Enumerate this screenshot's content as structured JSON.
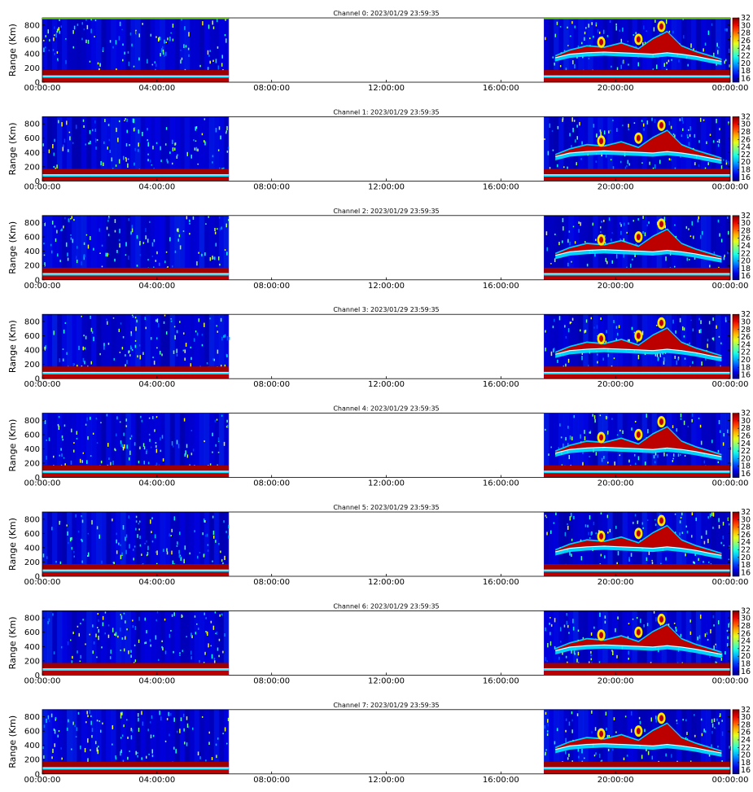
{
  "figure": {
    "background": "#ffffff"
  },
  "chart_data": [
    {
      "type": "heatmap",
      "title": "Channel 0: 2023/01/29 23:59:35",
      "ylabel": "Range (Km)",
      "x_ticks": [
        "00:00:00",
        "04:00:00",
        "08:00:00",
        "12:00:00",
        "16:00:00",
        "20:00:00",
        "00:00:00"
      ],
      "y_ticks": [
        0,
        200,
        400,
        600,
        800
      ],
      "ylim": [
        0,
        900
      ],
      "colorbar": {
        "ticks": [
          16,
          18,
          20,
          22,
          24,
          26,
          28,
          30,
          32
        ],
        "range": [
          15,
          32
        ],
        "colormap": "jet"
      },
      "data_segments": [
        {
          "start": "00:00:00",
          "end": "06:30:00"
        },
        {
          "start": "17:30:00",
          "end": "24:00:00"
        }
      ],
      "grid": false
    },
    {
      "type": "heatmap",
      "title": "Channel 1: 2023/01/29 23:59:35",
      "ylabel": "Range (Km)",
      "x_ticks": [
        "00:00:00",
        "04:00:00",
        "08:00:00",
        "12:00:00",
        "16:00:00",
        "20:00:00",
        "00:00:00"
      ],
      "y_ticks": [
        0,
        200,
        400,
        600,
        800
      ],
      "ylim": [
        0,
        900
      ],
      "colorbar": {
        "ticks": [
          16,
          18,
          20,
          22,
          24,
          26,
          28,
          30,
          32
        ],
        "range": [
          15,
          32
        ],
        "colormap": "jet"
      },
      "data_segments": [
        {
          "start": "00:00:00",
          "end": "06:30:00"
        },
        {
          "start": "17:30:00",
          "end": "24:00:00"
        }
      ],
      "grid": false
    },
    {
      "type": "heatmap",
      "title": "Channel 2: 2023/01/29 23:59:35",
      "ylabel": "Range (Km)",
      "x_ticks": [
        "00:00:00",
        "04:00:00",
        "08:00:00",
        "12:00:00",
        "16:00:00",
        "20:00:00",
        "00:00:00"
      ],
      "y_ticks": [
        0,
        200,
        400,
        600,
        800
      ],
      "ylim": [
        0,
        900
      ],
      "colorbar": {
        "ticks": [
          16,
          18,
          20,
          22,
          24,
          26,
          28,
          30,
          32
        ],
        "range": [
          15,
          32
        ],
        "colormap": "jet"
      },
      "data_segments": [
        {
          "start": "00:00:00",
          "end": "06:30:00"
        },
        {
          "start": "17:30:00",
          "end": "24:00:00"
        }
      ],
      "grid": false
    },
    {
      "type": "heatmap",
      "title": "Channel 3: 2023/01/29 23:59:35",
      "ylabel": "Range (Km)",
      "x_ticks": [
        "00:00:00",
        "04:00:00",
        "08:00:00",
        "12:00:00",
        "16:00:00",
        "20:00:00",
        "00:00:00"
      ],
      "y_ticks": [
        0,
        200,
        400,
        600,
        800
      ],
      "ylim": [
        0,
        900
      ],
      "colorbar": {
        "ticks": [
          16,
          18,
          20,
          22,
          24,
          26,
          28,
          30,
          32
        ],
        "range": [
          15,
          32
        ],
        "colormap": "jet"
      },
      "data_segments": [
        {
          "start": "00:00:00",
          "end": "06:30:00"
        },
        {
          "start": "17:30:00",
          "end": "24:00:00"
        }
      ],
      "grid": false
    },
    {
      "type": "heatmap",
      "title": "Channel 4: 2023/01/29 23:59:35",
      "ylabel": "Range (Km)",
      "x_ticks": [
        "00:00:00",
        "04:00:00",
        "08:00:00",
        "12:00:00",
        "16:00:00",
        "20:00:00",
        "00:00:00"
      ],
      "y_ticks": [
        0,
        200,
        400,
        600,
        800
      ],
      "ylim": [
        0,
        900
      ],
      "colorbar": {
        "ticks": [
          16,
          18,
          20,
          22,
          24,
          26,
          28,
          30,
          32
        ],
        "range": [
          15,
          32
        ],
        "colormap": "jet"
      },
      "data_segments": [
        {
          "start": "00:00:00",
          "end": "06:30:00"
        },
        {
          "start": "17:30:00",
          "end": "24:00:00"
        }
      ],
      "grid": false
    },
    {
      "type": "heatmap",
      "title": "Channel 5: 2023/01/29 23:59:35",
      "ylabel": "Range (Km)",
      "x_ticks": [
        "00:00:00",
        "04:00:00",
        "08:00:00",
        "12:00:00",
        "16:00:00",
        "20:00:00",
        "00:00:00"
      ],
      "y_ticks": [
        0,
        200,
        400,
        600,
        800
      ],
      "ylim": [
        0,
        900
      ],
      "colorbar": {
        "ticks": [
          16,
          18,
          20,
          22,
          24,
          26,
          28,
          30,
          32
        ],
        "range": [
          15,
          32
        ],
        "colormap": "jet"
      },
      "data_segments": [
        {
          "start": "00:00:00",
          "end": "06:30:00"
        },
        {
          "start": "17:30:00",
          "end": "24:00:00"
        }
      ],
      "grid": false
    },
    {
      "type": "heatmap",
      "title": "Channel 6: 2023/01/29 23:59:35",
      "ylabel": "Range (Km)",
      "x_ticks": [
        "00:00:00",
        "04:00:00",
        "08:00:00",
        "12:00:00",
        "16:00:00",
        "20:00:00",
        "00:00:00"
      ],
      "y_ticks": [
        0,
        200,
        400,
        600,
        800
      ],
      "ylim": [
        0,
        900
      ],
      "colorbar": {
        "ticks": [
          16,
          18,
          20,
          22,
          24,
          26,
          28,
          30,
          32
        ],
        "range": [
          15,
          32
        ],
        "colormap": "jet"
      },
      "data_segments": [
        {
          "start": "00:00:00",
          "end": "06:30:00"
        },
        {
          "start": "17:30:00",
          "end": "24:00:00"
        }
      ],
      "grid": false
    },
    {
      "type": "heatmap",
      "title": "Channel 7: 2023/01/29 23:59:35",
      "ylabel": "Range (Km)",
      "x_ticks": [
        "00:00:00",
        "04:00:00",
        "08:00:00",
        "12:00:00",
        "16:00:00",
        "20:00:00",
        "00:00:00"
      ],
      "y_ticks": [
        0,
        200,
        400,
        600,
        800
      ],
      "ylim": [
        0,
        900
      ],
      "colorbar": {
        "ticks": [
          16,
          18,
          20,
          22,
          24,
          26,
          28,
          30,
          32
        ],
        "range": [
          15,
          32
        ],
        "colormap": "jet"
      },
      "data_segments": [
        {
          "start": "00:00:00",
          "end": "06:30:00"
        },
        {
          "start": "17:30:00",
          "end": "24:00:00"
        }
      ],
      "grid": false
    }
  ]
}
